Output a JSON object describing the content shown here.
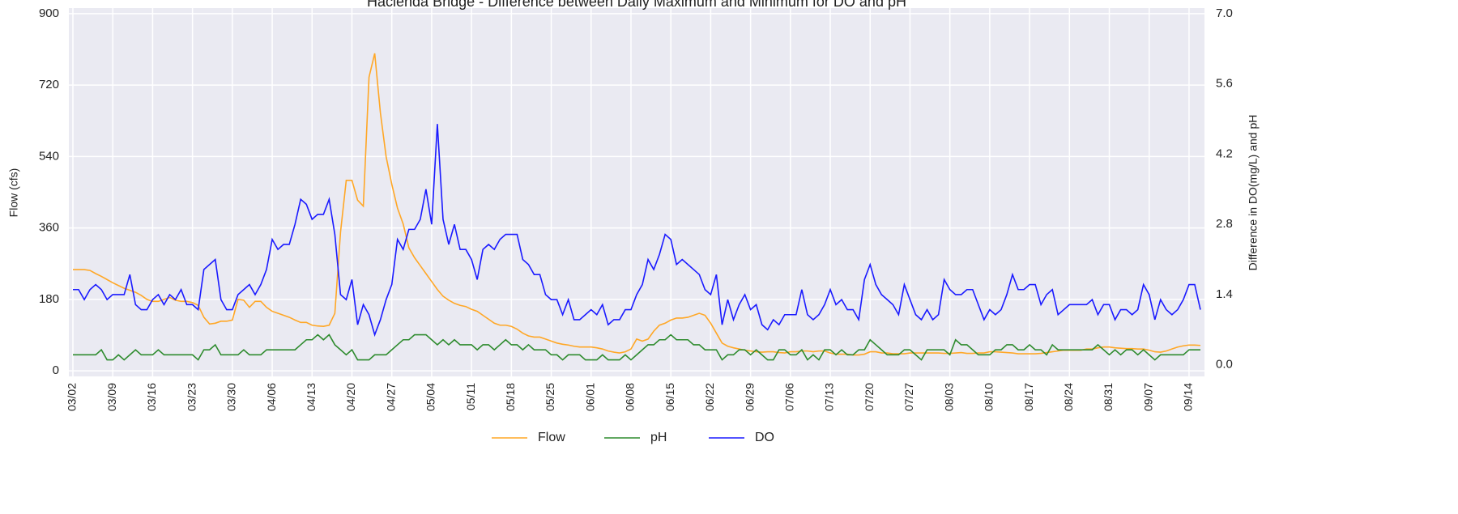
{
  "chart_data": {
    "type": "line",
    "title": "Hacienda Bridge - Difference between Daily Maximum and Minimum for DO and pH",
    "ylabel": "Flow (cfs)",
    "y2label": "Difference in DO(mg/L) and pH",
    "categories": [
      "03/02",
      null,
      null,
      null,
      null,
      null,
      null,
      "03/09",
      null,
      null,
      null,
      null,
      null,
      null,
      "03/16",
      null,
      null,
      null,
      null,
      null,
      null,
      "03/23",
      null,
      null,
      null,
      null,
      null,
      null,
      "03/30",
      null,
      null,
      null,
      null,
      null,
      null,
      "04/06",
      null,
      null,
      null,
      null,
      null,
      null,
      "04/13",
      null,
      null,
      null,
      null,
      null,
      null,
      "04/20",
      null,
      null,
      null,
      null,
      null,
      null,
      "04/27",
      null,
      null,
      null,
      null,
      null,
      null,
      "05/04",
      null,
      null,
      null,
      null,
      null,
      null,
      "05/11",
      null,
      null,
      null,
      null,
      null,
      null,
      "05/18",
      null,
      null,
      null,
      null,
      null,
      null,
      "05/25",
      null,
      null,
      null,
      null,
      null,
      null,
      "06/01",
      null,
      null,
      null,
      null,
      null,
      null,
      "06/08",
      null,
      null,
      null,
      null,
      null,
      null,
      "06/15",
      null,
      null,
      null,
      null,
      null,
      null,
      "06/22",
      null,
      null,
      null,
      null,
      null,
      null,
      "06/29",
      null,
      null,
      null,
      null,
      null,
      null,
      "07/06",
      null,
      null,
      null,
      null,
      null,
      null,
      "07/13",
      null,
      null,
      null,
      null,
      null,
      null,
      "07/20",
      null,
      null,
      null,
      null,
      null,
      null,
      "07/27",
      null,
      null,
      null,
      null,
      null,
      null,
      "08/03",
      null,
      null,
      null,
      null,
      null,
      null,
      "08/10",
      null,
      null,
      null,
      null,
      null,
      null,
      "08/17",
      null,
      null,
      null,
      null,
      null,
      null,
      "08/24",
      null,
      null,
      null,
      null,
      null,
      null,
      "08/31",
      null,
      null,
      null,
      null,
      null,
      null,
      "09/07",
      null,
      null,
      null,
      null,
      null,
      null,
      "09/14",
      null,
      null
    ],
    "series": [
      {
        "name": "Flow",
        "color": "#ffa726",
        "axis": "y",
        "values": [
          255,
          255,
          255,
          253,
          245,
          238,
          230,
          222,
          215,
          208,
          203,
          198,
          190,
          180,
          175,
          175,
          180,
          185,
          178,
          175,
          175,
          172,
          165,
          135,
          118,
          120,
          125,
          125,
          128,
          180,
          178,
          160,
          175,
          175,
          160,
          150,
          145,
          140,
          135,
          128,
          122,
          122,
          115,
          113,
          112,
          115,
          145,
          350,
          480,
          480,
          430,
          415,
          740,
          800,
          650,
          540,
          470,
          410,
          370,
          310,
          285,
          265,
          245,
          225,
          205,
          188,
          178,
          170,
          165,
          162,
          155,
          150,
          140,
          130,
          120,
          115,
          115,
          112,
          105,
          95,
          88,
          85,
          85,
          80,
          75,
          70,
          67,
          65,
          62,
          60,
          60,
          60,
          58,
          55,
          50,
          47,
          45,
          48,
          55,
          80,
          75,
          80,
          100,
          115,
          120,
          128,
          133,
          133,
          135,
          140,
          145,
          140,
          120,
          95,
          70,
          62,
          58,
          55,
          52,
          50,
          48,
          47,
          48,
          48,
          46,
          45,
          48,
          48,
          50,
          50,
          48,
          50,
          50,
          45,
          42,
          42,
          42,
          40,
          40,
          42,
          48,
          48,
          45,
          45,
          43,
          43,
          43,
          45,
          45,
          45,
          45,
          45,
          45,
          44,
          44,
          45,
          46,
          44,
          44,
          45,
          45,
          48,
          48,
          47,
          46,
          45,
          43,
          43,
          43,
          43,
          44,
          46,
          48,
          50,
          52,
          52,
          52,
          52,
          55,
          55,
          58,
          60,
          60,
          58,
          57,
          56,
          56,
          55,
          55,
          52,
          48,
          47,
          50,
          55,
          60,
          63,
          65,
          65,
          64
        ]
      },
      {
        "name": "pH",
        "color": "#2e8b2e",
        "axis": "y2",
        "values": [
          0.2,
          0.2,
          0.2,
          0.2,
          0.2,
          0.3,
          0.1,
          0.1,
          0.2,
          0.1,
          0.2,
          0.3,
          0.2,
          0.2,
          0.2,
          0.3,
          0.2,
          0.2,
          0.2,
          0.2,
          0.2,
          0.2,
          0.1,
          0.3,
          0.3,
          0.4,
          0.2,
          0.2,
          0.2,
          0.2,
          0.3,
          0.2,
          0.2,
          0.2,
          0.3,
          0.3,
          0.3,
          0.3,
          0.3,
          0.3,
          0.4,
          0.5,
          0.5,
          0.6,
          0.5,
          0.6,
          0.4,
          0.3,
          0.2,
          0.3,
          0.1,
          0.1,
          0.1,
          0.2,
          0.2,
          0.2,
          0.3,
          0.4,
          0.5,
          0.5,
          0.6,
          0.6,
          0.6,
          0.5,
          0.4,
          0.5,
          0.4,
          0.5,
          0.4,
          0.4,
          0.4,
          0.3,
          0.4,
          0.4,
          0.3,
          0.4,
          0.5,
          0.4,
          0.4,
          0.3,
          0.4,
          0.3,
          0.3,
          0.3,
          0.2,
          0.2,
          0.1,
          0.2,
          0.2,
          0.2,
          0.1,
          0.1,
          0.1,
          0.2,
          0.1,
          0.1,
          0.1,
          0.2,
          0.1,
          0.2,
          0.3,
          0.4,
          0.4,
          0.5,
          0.5,
          0.6,
          0.5,
          0.5,
          0.5,
          0.4,
          0.4,
          0.3,
          0.3,
          0.3,
          0.1,
          0.2,
          0.2,
          0.3,
          0.3,
          0.2,
          0.3,
          0.2,
          0.1,
          0.1,
          0.3,
          0.3,
          0.2,
          0.2,
          0.3,
          0.1,
          0.2,
          0.1,
          0.3,
          0.3,
          0.2,
          0.3,
          0.2,
          0.2,
          0.3,
          0.3,
          0.5,
          0.4,
          0.3,
          0.2,
          0.2,
          0.2,
          0.3,
          0.3,
          0.2,
          0.1,
          0.3,
          0.3,
          0.3,
          0.3,
          0.2,
          0.5,
          0.4,
          0.4,
          0.3,
          0.2,
          0.2,
          0.2,
          0.3,
          0.3,
          0.4,
          0.4,
          0.3,
          0.3,
          0.4,
          0.3,
          0.3,
          0.2,
          0.4,
          0.3,
          0.3,
          0.3,
          0.3,
          0.3,
          0.3,
          0.3,
          0.4,
          0.3,
          0.2,
          0.3,
          0.2,
          0.3,
          0.3,
          0.2,
          0.3,
          0.2,
          0.1,
          0.2,
          0.2,
          0.2,
          0.2,
          0.2,
          0.3,
          0.3,
          0.3
        ]
      },
      {
        "name": "DO",
        "color": "#1a1aff",
        "axis": "y2",
        "values": [
          1.5,
          1.5,
          1.3,
          1.5,
          1.6,
          1.5,
          1.3,
          1.4,
          1.4,
          1.4,
          1.8,
          1.2,
          1.1,
          1.1,
          1.3,
          1.4,
          1.2,
          1.4,
          1.3,
          1.5,
          1.2,
          1.2,
          1.1,
          1.9,
          2.0,
          2.1,
          1.3,
          1.1,
          1.1,
          1.4,
          1.5,
          1.6,
          1.4,
          1.6,
          1.9,
          2.5,
          2.3,
          2.4,
          2.4,
          2.8,
          3.3,
          3.2,
          2.9,
          3.0,
          3.0,
          3.3,
          2.6,
          1.4,
          1.3,
          1.7,
          0.8,
          1.2,
          1.0,
          0.6,
          0.9,
          1.3,
          1.6,
          2.5,
          2.3,
          2.7,
          2.7,
          2.9,
          3.5,
          2.8,
          4.8,
          2.9,
          2.4,
          2.8,
          2.3,
          2.3,
          2.1,
          1.7,
          2.3,
          2.4,
          2.3,
          2.5,
          2.6,
          2.6,
          2.6,
          2.1,
          2.0,
          1.8,
          1.8,
          1.4,
          1.3,
          1.3,
          1.0,
          1.3,
          0.9,
          0.9,
          1.0,
          1.1,
          1.0,
          1.2,
          0.8,
          0.9,
          0.9,
          1.1,
          1.1,
          1.4,
          1.6,
          2.1,
          1.9,
          2.2,
          2.6,
          2.5,
          2.0,
          2.1,
          2.0,
          1.9,
          1.8,
          1.5,
          1.4,
          1.8,
          0.8,
          1.3,
          0.9,
          1.2,
          1.4,
          1.1,
          1.2,
          0.8,
          0.7,
          0.9,
          0.8,
          1.0,
          1.0,
          1.0,
          1.5,
          1.0,
          0.9,
          1.0,
          1.2,
          1.5,
          1.2,
          1.3,
          1.1,
          1.1,
          0.9,
          1.7,
          2.0,
          1.6,
          1.4,
          1.3,
          1.2,
          1.0,
          1.6,
          1.3,
          1.0,
          0.9,
          1.1,
          0.9,
          1.0,
          1.7,
          1.5,
          1.4,
          1.4,
          1.5,
          1.5,
          1.2,
          0.9,
          1.1,
          1.0,
          1.1,
          1.4,
          1.8,
          1.5,
          1.5,
          1.6,
          1.6,
          1.2,
          1.4,
          1.5,
          1.0,
          1.1,
          1.2,
          1.2,
          1.2,
          1.2,
          1.3,
          1.0,
          1.2,
          1.2,
          0.9,
          1.1,
          1.1,
          1.0,
          1.1,
          1.6,
          1.4,
          0.9,
          1.3,
          1.1,
          1.0,
          1.1,
          1.3,
          1.6,
          1.6,
          1.1
        ]
      }
    ],
    "ylim": [
      -14,
      914
    ],
    "yticks": [
      0,
      180,
      360,
      540,
      720,
      900
    ],
    "y2lim": [
      -0.23,
      7.11
    ],
    "y2ticks": [
      {
        "value": 0,
        "label": "0.0"
      },
      1.4,
      2.8,
      4.2,
      5.6,
      {
        "value": 7,
        "label": "7.0"
      }
    ],
    "grid": true,
    "legend": "bottom"
  }
}
